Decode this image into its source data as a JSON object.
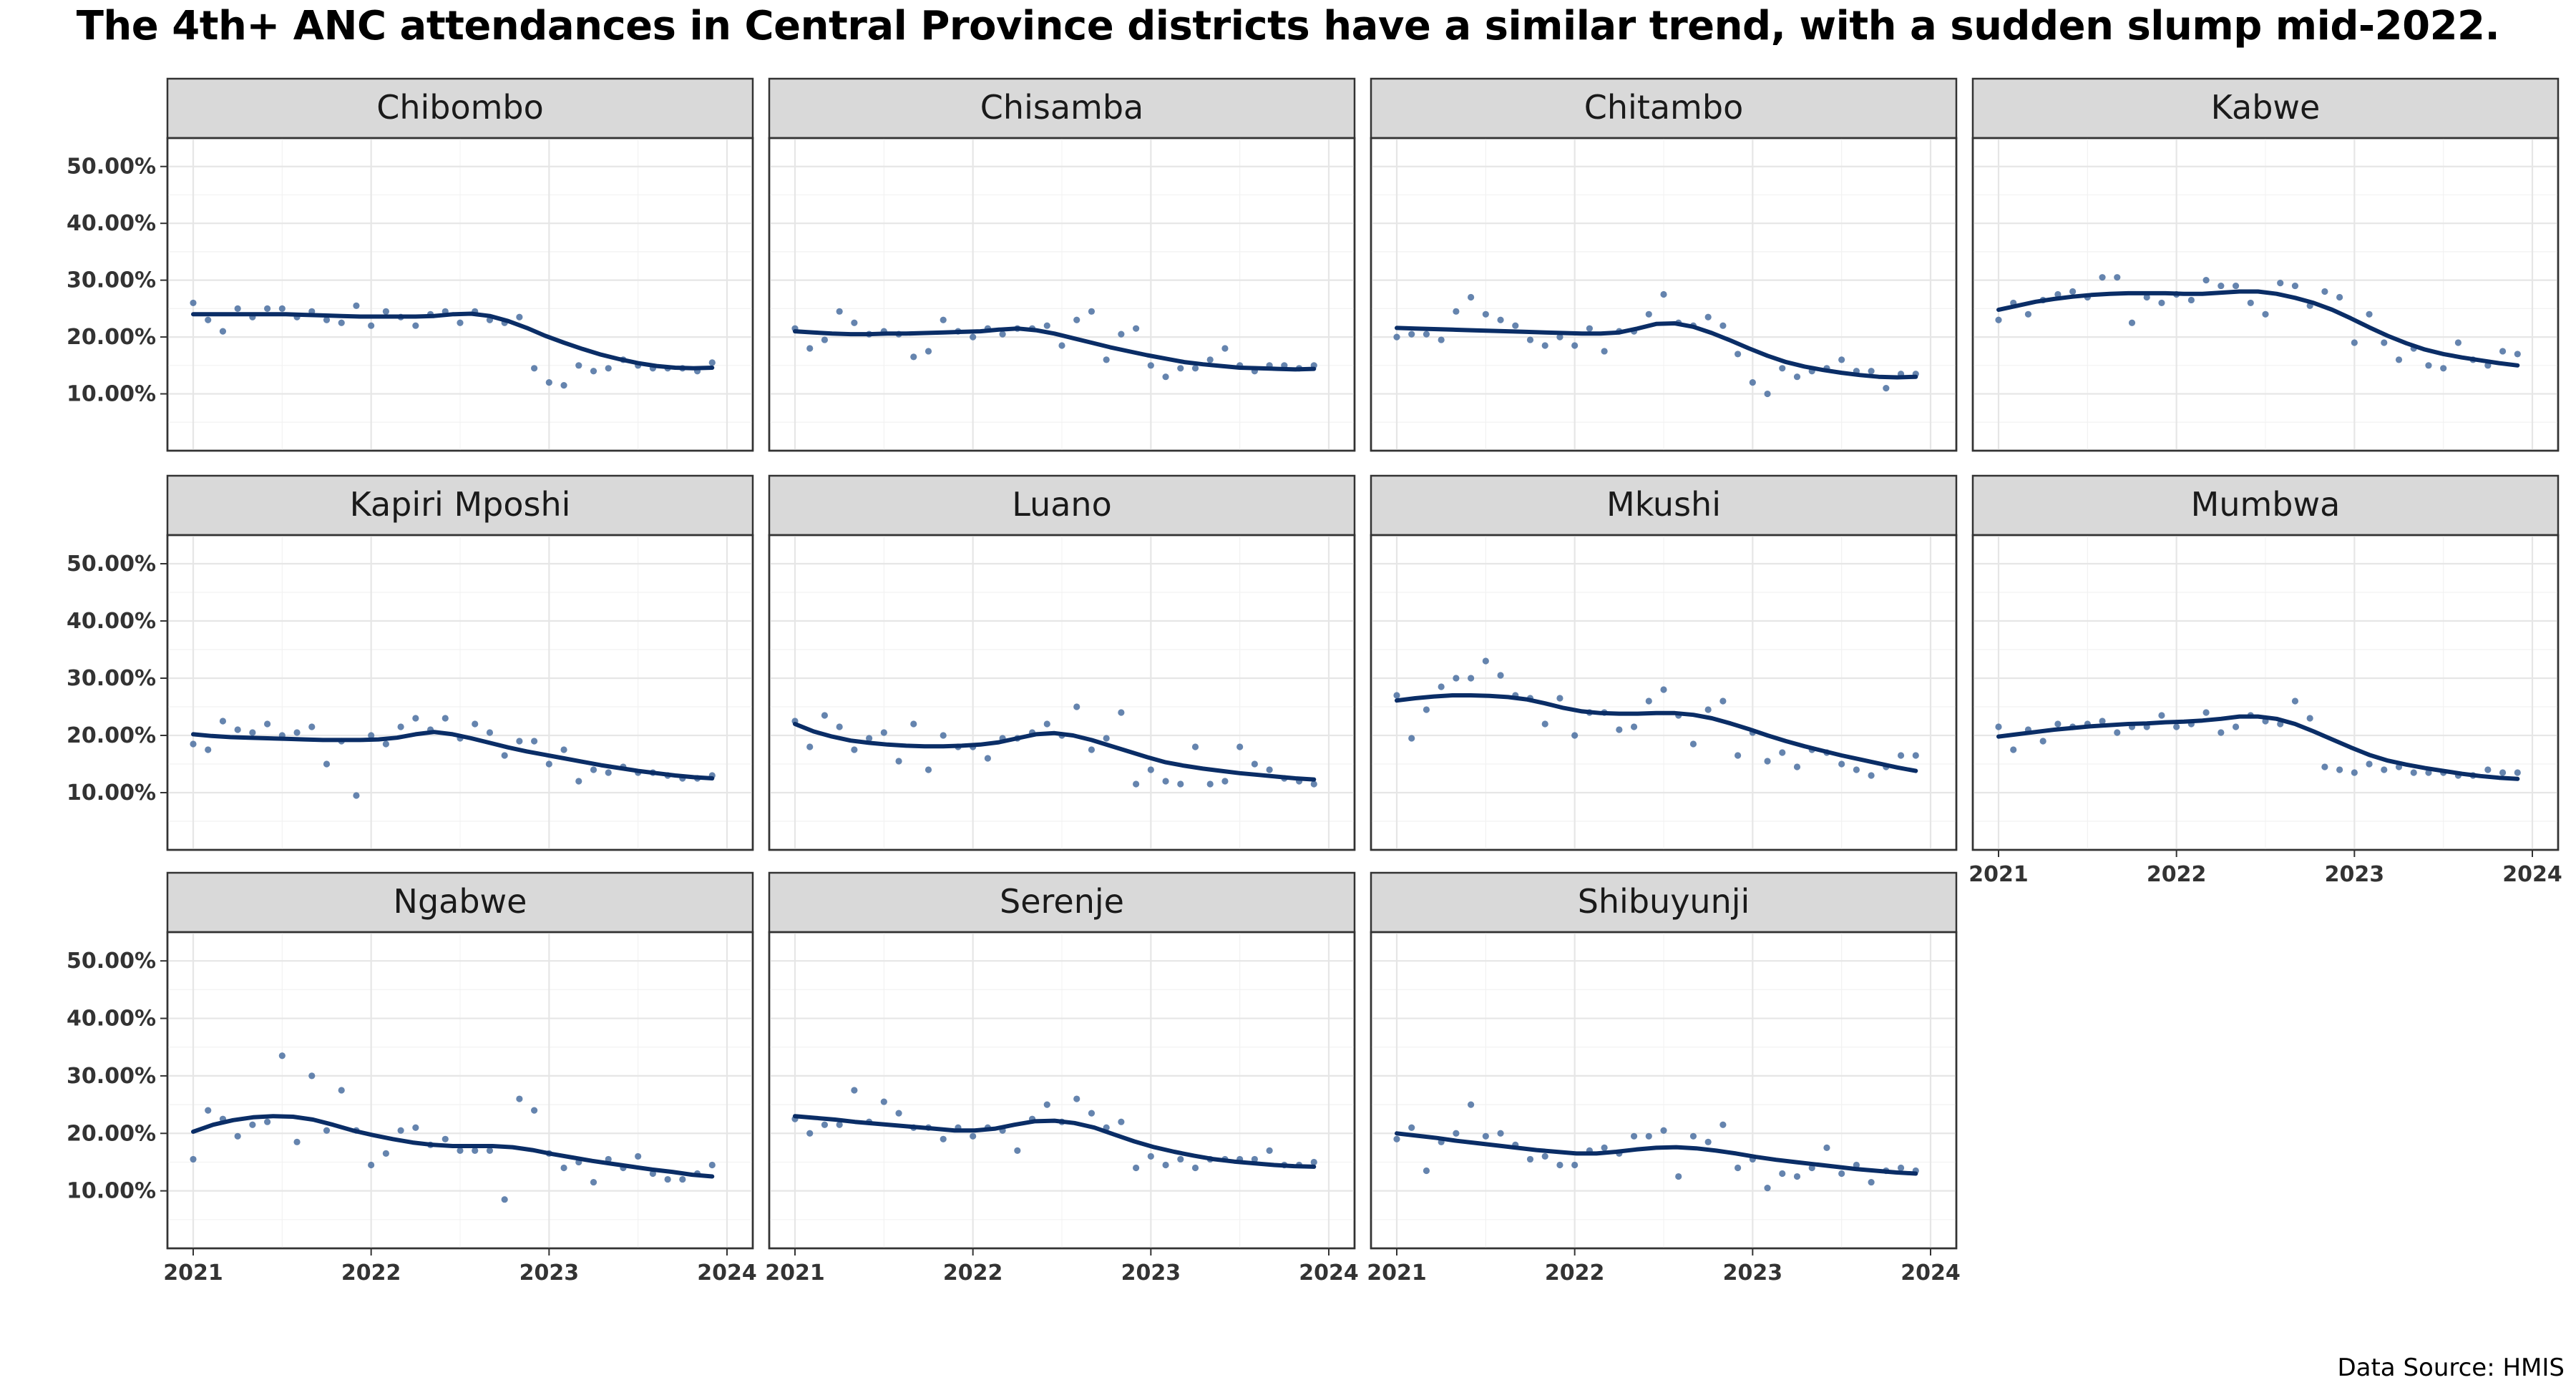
{
  "title": "The 4th+ ANC attendances in Central Province districts have a similar trend, with a sudden slump mid-2022.",
  "source": "Data Source: HMIS",
  "colors": {
    "points": "#4a6fa0",
    "trend": "#0a2d66",
    "strip": "#d9d9d9",
    "panel_border": "#333333"
  },
  "chart_data": {
    "type": "scatter",
    "grid": true,
    "xlim": [
      2021,
      2024
    ],
    "ylim": [
      0,
      55
    ],
    "x_ticks": [
      "2021",
      "2022",
      "2023",
      "2024"
    ],
    "y_ticks": [
      "10.00%",
      "20.00%",
      "30.00%",
      "40.00%",
      "50.00%"
    ],
    "panels": [
      {
        "name": "Chibombo",
        "points": [
          26,
          23,
          21,
          25,
          23.5,
          25,
          25,
          23.5,
          24.5,
          23,
          22.5,
          25.5,
          22,
          24.5,
          23.5,
          22,
          24,
          24.5,
          22.5,
          24.5,
          23,
          22.5,
          23.5,
          14.5,
          12,
          11.5,
          15,
          14,
          14.5,
          16,
          15,
          14.5,
          14.5,
          14.5,
          14,
          15.5
        ],
        "trend": [
          24,
          24,
          24,
          24,
          24,
          24,
          23.9,
          23.8,
          23.7,
          23.6,
          23.6,
          23.6,
          23.6,
          23.7,
          24,
          24.1,
          23.7,
          22.8,
          21.6,
          20.2,
          19,
          17.9,
          16.9,
          16.1,
          15.4,
          14.9,
          14.6,
          14.5,
          14.6
        ]
      },
      {
        "name": "Chisamba",
        "points": [
          21.5,
          18,
          19.5,
          24.5,
          22.5,
          20.5,
          21,
          20.5,
          16.5,
          17.5,
          23,
          21,
          20,
          21.5,
          20.5,
          21.5,
          21.5,
          22,
          18.5,
          23,
          24.5,
          16,
          20.5,
          21.5,
          15,
          13,
          14.5,
          14.5,
          16,
          18,
          15,
          14,
          15,
          15,
          14.5,
          15
        ],
        "trend": [
          21,
          20.8,
          20.6,
          20.5,
          20.5,
          20.6,
          20.6,
          20.7,
          20.8,
          20.9,
          21,
          21.3,
          21.5,
          21.2,
          20.6,
          19.8,
          19,
          18.2,
          17.5,
          16.8,
          16.2,
          15.6,
          15.2,
          14.9,
          14.6,
          14.5,
          14.4,
          14.3,
          14.4
        ]
      },
      {
        "name": "Chitambo",
        "points": [
          20,
          20.5,
          20.5,
          19.5,
          24.5,
          27,
          24,
          23,
          22,
          19.5,
          18.5,
          20,
          18.5,
          21.5,
          17.5,
          21,
          21,
          24,
          27.5,
          22.5,
          22,
          23.5,
          22,
          17,
          12,
          10,
          14.5,
          13,
          14,
          14.5,
          16,
          14,
          14,
          11,
          13.5,
          13.5
        ],
        "trend": [
          21.6,
          21.5,
          21.4,
          21.3,
          21.2,
          21.1,
          21,
          20.9,
          20.8,
          20.7,
          20.6,
          20.6,
          20.8,
          21.5,
          22.3,
          22.4,
          21.8,
          20.7,
          19.4,
          18,
          16.7,
          15.6,
          14.8,
          14.2,
          13.7,
          13.3,
          13,
          12.9,
          13
        ]
      },
      {
        "name": "Kabwe",
        "points": [
          23,
          26,
          24,
          26.5,
          27.5,
          28,
          27,
          30.5,
          30.5,
          22.5,
          27,
          26,
          27.5,
          26.5,
          30,
          29,
          29,
          26,
          24,
          29.5,
          29,
          25.5,
          28,
          27,
          19,
          24,
          19,
          16,
          18,
          15,
          14.5,
          19,
          16,
          15,
          17.5,
          17
        ],
        "trend": [
          24.8,
          25.5,
          26.2,
          26.7,
          27.1,
          27.4,
          27.6,
          27.7,
          27.7,
          27.7,
          27.6,
          27.6,
          27.8,
          28,
          28,
          27.6,
          26.9,
          26,
          24.8,
          23.3,
          21.7,
          20.2,
          18.9,
          17.8,
          17,
          16.4,
          15.9,
          15.4,
          15
        ]
      },
      {
        "name": "Kapiri Mposhi",
        "points": [
          18.5,
          17.5,
          22.5,
          21,
          20.5,
          22,
          20,
          20.5,
          21.5,
          15,
          19,
          9.5,
          20,
          18.5,
          21.5,
          23,
          21,
          23,
          19.5,
          22,
          20.5,
          16.5,
          19,
          19,
          15,
          17.5,
          12,
          14,
          13.5,
          14.5,
          13.5,
          13.5,
          13,
          12.5,
          12.5,
          13
        ],
        "trend": [
          20.2,
          19.9,
          19.7,
          19.6,
          19.5,
          19.4,
          19.3,
          19.2,
          19.2,
          19.2,
          19.3,
          19.6,
          20.2,
          20.6,
          20.2,
          19.5,
          18.7,
          17.9,
          17.2,
          16.6,
          16,
          15.4,
          14.8,
          14.3,
          13.8,
          13.4,
          13,
          12.7,
          12.5
        ]
      },
      {
        "name": "Luano",
        "points": [
          22.5,
          18,
          23.5,
          21.5,
          17.5,
          19.5,
          20.5,
          15.5,
          22,
          14,
          20,
          18,
          18,
          16,
          19.5,
          19.5,
          20.5,
          22,
          20,
          25,
          17.5,
          19.5,
          24,
          11.5,
          14,
          12,
          11.5,
          18,
          11.5,
          12,
          18,
          15,
          14,
          12.5,
          12,
          11.5
        ],
        "trend": [
          22,
          20.7,
          19.8,
          19.1,
          18.7,
          18.4,
          18.2,
          18.1,
          18.1,
          18.2,
          18.4,
          18.8,
          19.5,
          20.2,
          20.4,
          20,
          19.2,
          18.2,
          17.2,
          16.2,
          15.3,
          14.7,
          14.2,
          13.8,
          13.4,
          13.1,
          12.8,
          12.5,
          12.3
        ]
      },
      {
        "name": "Mkushi",
        "points": [
          27,
          19.5,
          24.5,
          28.5,
          30,
          30,
          33,
          30.5,
          27,
          26.5,
          22,
          26.5,
          20,
          24,
          24,
          21,
          21.5,
          26,
          28,
          23.5,
          18.5,
          24.5,
          26,
          16.5,
          20.5,
          15.5,
          17,
          14.5,
          17.5,
          17,
          15,
          14,
          13,
          14.5,
          16.5,
          16.5
        ],
        "trend": [
          26.1,
          26.5,
          26.8,
          27,
          27,
          26.9,
          26.7,
          26.3,
          25.6,
          24.8,
          24.2,
          23.9,
          23.8,
          23.8,
          23.9,
          23.9,
          23.6,
          23,
          22.1,
          21.1,
          20,
          19,
          18.1,
          17.3,
          16.5,
          15.8,
          15.1,
          14.4,
          13.8
        ]
      },
      {
        "name": "Mumbwa",
        "points": [
          21.5,
          17.5,
          21,
          19,
          22,
          21.5,
          22,
          22.5,
          20.5,
          21.5,
          21.5,
          23.5,
          21.5,
          22,
          24,
          20.5,
          21.5,
          23.5,
          22.5,
          22,
          26,
          23,
          14.5,
          14,
          13.5,
          15,
          14,
          14.5,
          13.5,
          13.5,
          13.5,
          13,
          13,
          14,
          13.5,
          13.5
        ],
        "trend": [
          19.8,
          20.2,
          20.6,
          21,
          21.3,
          21.6,
          21.8,
          22,
          22.1,
          22.3,
          22.4,
          22.6,
          22.9,
          23.3,
          23.3,
          22.9,
          22,
          20.7,
          19.3,
          17.9,
          16.6,
          15.6,
          14.9,
          14.3,
          13.8,
          13.3,
          12.9,
          12.6,
          12.4
        ]
      },
      {
        "name": "Ngabwe",
        "points": [
          15.5,
          24,
          22.5,
          19.5,
          21.5,
          22,
          33.5,
          18.5,
          30,
          20.5,
          27.5,
          20.5,
          14.5,
          16.5,
          20.5,
          21,
          18,
          19,
          17,
          17,
          17,
          8.5,
          26,
          24,
          16.5,
          14,
          15,
          11.5,
          15.5,
          14,
          16,
          13,
          12,
          12,
          13,
          14.5
        ],
        "trend": [
          20.3,
          21.5,
          22.3,
          22.8,
          23,
          22.9,
          22.4,
          21.5,
          20.5,
          19.7,
          19,
          18.4,
          18,
          17.8,
          17.8,
          17.8,
          17.6,
          17.1,
          16.4,
          15.8,
          15.2,
          14.7,
          14.2,
          13.7,
          13.3,
          12.8,
          12.5
        ]
      },
      {
        "name": "Serenje",
        "points": [
          22.5,
          20,
          21.5,
          21.5,
          27.5,
          22,
          25.5,
          23.5,
          21,
          21,
          19,
          21,
          19.5,
          21,
          20.5,
          17,
          22.5,
          25,
          22,
          26,
          23.5,
          21,
          22,
          14,
          16,
          14.5,
          15.5,
          14,
          15.5,
          15.5,
          15.5,
          15.5,
          17,
          14.5,
          14.5,
          15
        ],
        "trend": [
          23,
          22.7,
          22.4,
          22,
          21.7,
          21.4,
          21.1,
          20.8,
          20.5,
          20.5,
          20.8,
          21.5,
          22.1,
          22.2,
          21.8,
          21,
          19.8,
          18.6,
          17.6,
          16.8,
          16.1,
          15.5,
          15.1,
          14.8,
          14.5,
          14.3,
          14.2
        ]
      },
      {
        "name": "Shibuyunji",
        "points": [
          19,
          21,
          13.5,
          18.5,
          20,
          25,
          19.5,
          20,
          18,
          15.5,
          16,
          14.5,
          14.5,
          17,
          17.5,
          16.5,
          19.5,
          19.5,
          20.5,
          12.5,
          19.5,
          18.5,
          21.5,
          14,
          15.5,
          10.5,
          13,
          12.5,
          14,
          17.5,
          13,
          14.5,
          11.5,
          13.5,
          14,
          13.5
        ],
        "trend": [
          20,
          19.6,
          19.2,
          18.7,
          18.3,
          17.9,
          17.5,
          17.1,
          16.8,
          16.5,
          16.5,
          16.8,
          17.2,
          17.5,
          17.6,
          17.4,
          17,
          16.5,
          15.9,
          15.4,
          15,
          14.6,
          14.2,
          13.8,
          13.5,
          13.2,
          13
        ]
      }
    ]
  }
}
